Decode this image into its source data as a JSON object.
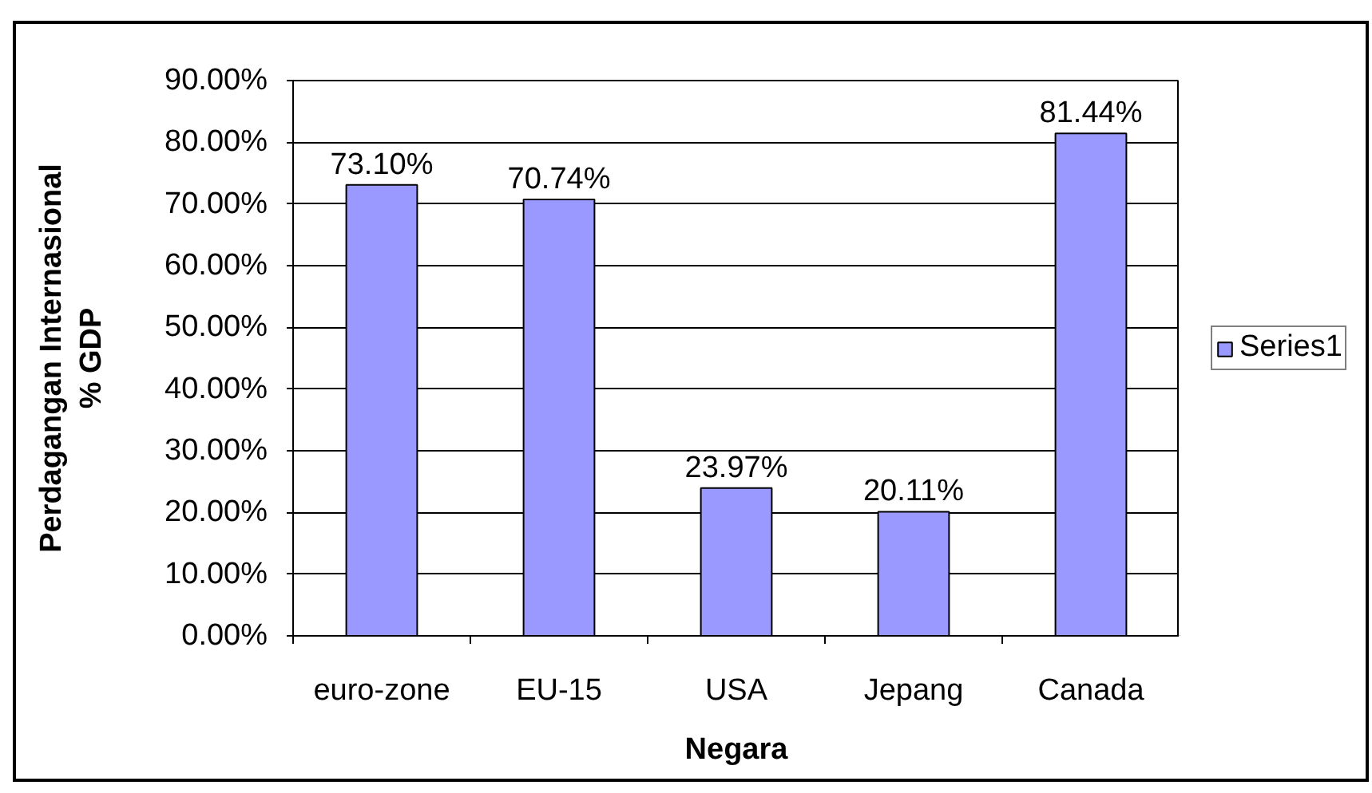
{
  "chart_data": {
    "type": "bar",
    "xlabel": "Negara",
    "ylabel": "Perdagangan Internasional\n% GDP",
    "categories": [
      "euro-zone",
      "EU-15",
      "USA",
      "Jepang",
      "Canada"
    ],
    "series": [
      {
        "name": "Series1",
        "color": "#9999ff",
        "values": [
          73.1,
          70.74,
          23.97,
          20.11,
          81.44
        ],
        "value_labels": [
          "73.10%",
          "70.74%",
          "23.97%",
          "20.11%",
          "81.44%"
        ]
      }
    ],
    "ylim": [
      0,
      90
    ],
    "yticks": [
      {
        "value": 0,
        "label": "0.00%"
      },
      {
        "value": 10,
        "label": "10.00%"
      },
      {
        "value": 20,
        "label": "20.00%"
      },
      {
        "value": 30,
        "label": "30.00%"
      },
      {
        "value": 40,
        "label": "40.00%"
      },
      {
        "value": 50,
        "label": "50.00%"
      },
      {
        "value": 60,
        "label": "60.00%"
      },
      {
        "value": 70,
        "label": "70.00%"
      },
      {
        "value": 80,
        "label": "80.00%"
      },
      {
        "value": 90,
        "label": "90.00%"
      }
    ],
    "grid": "y",
    "legend": "right"
  }
}
